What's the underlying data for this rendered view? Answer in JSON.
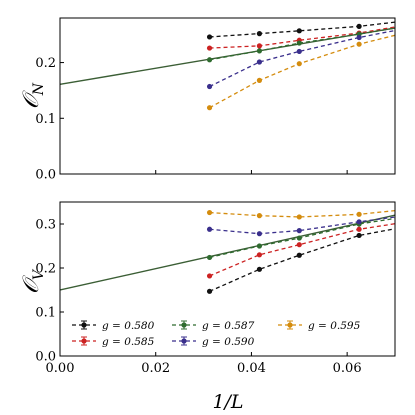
{
  "chart_data": [
    {
      "type": "line",
      "title": "",
      "xlabel": "1/L",
      "ylabel": "𝒪N",
      "ylabel_main": "𝒪",
      "ylabel_sub": "N",
      "xlim": [
        0.0,
        0.07
      ],
      "ylim": [
        0.0,
        0.28
      ],
      "xticks": [
        0.0,
        0.02,
        0.04,
        0.06
      ],
      "xtick_labels": [
        "",
        "",
        "",
        ""
      ],
      "yticks": [
        0.0,
        0.1,
        0.2
      ],
      "ytick_labels": [
        "0.0",
        "0.1",
        "0.2"
      ],
      "grid": false,
      "fit_line": {
        "color": "#3b5e35",
        "x": [
          0.0,
          0.07
        ],
        "y": [
          0.161,
          0.262
        ]
      },
      "series": [
        {
          "name": "g = 0.580",
          "color": "#111111",
          "x": [
            0.03125,
            0.04167,
            0.05,
            0.0625,
            0.07143
          ],
          "y": [
            0.246,
            0.252,
            0.257,
            0.265,
            0.274
          ]
        },
        {
          "name": "g = 0.585",
          "color": "#cc2222",
          "x": [
            0.03125,
            0.04167,
            0.05,
            0.0625,
            0.07143
          ],
          "y": [
            0.226,
            0.23,
            0.24,
            0.253,
            0.266
          ]
        },
        {
          "name": "g = 0.587",
          "color": "#2f6b2f",
          "x": [
            0.03125,
            0.04167,
            0.05,
            0.0625,
            0.07143
          ],
          "y": [
            0.205,
            0.221,
            0.235,
            0.251,
            0.264
          ]
        },
        {
          "name": "g = 0.590",
          "color": "#3a2f8c",
          "x": [
            0.03125,
            0.04167,
            0.05,
            0.0625,
            0.07143
          ],
          "y": [
            0.157,
            0.201,
            0.22,
            0.245,
            0.26
          ]
        },
        {
          "name": "g = 0.595",
          "color": "#d48c0e",
          "x": [
            0.03125,
            0.04167,
            0.05,
            0.0625,
            0.07143
          ],
          "y": [
            0.119,
            0.168,
            0.198,
            0.233,
            0.252
          ]
        }
      ]
    },
    {
      "type": "line",
      "title": "",
      "xlabel": "1/L",
      "ylabel": "𝒪V",
      "ylabel_main": "𝒪",
      "ylabel_sub": "V",
      "xlim": [
        0.0,
        0.07
      ],
      "ylim": [
        0.0,
        0.35
      ],
      "xticks": [
        0.0,
        0.02,
        0.04,
        0.06
      ],
      "xtick_labels": [
        "0.00",
        "0.02",
        "0.04",
        "0.06"
      ],
      "yticks": [
        0.0,
        0.1,
        0.2,
        0.3
      ],
      "ytick_labels": [
        "0.0",
        "0.1",
        "0.2",
        "0.3"
      ],
      "grid": false,
      "legend": "lower-center",
      "fit_line": {
        "color": "#3b5e35",
        "x": [
          0.0,
          0.07
        ],
        "y": [
          0.15,
          0.32
        ]
      },
      "series": [
        {
          "name": "g = 0.580",
          "color": "#111111",
          "x": [
            0.03125,
            0.04167,
            0.05,
            0.0625,
            0.07143
          ],
          "y": [
            0.147,
            0.197,
            0.229,
            0.274,
            0.292
          ]
        },
        {
          "name": "g = 0.585",
          "color": "#cc2222",
          "x": [
            0.03125,
            0.04167,
            0.05,
            0.0625,
            0.07143
          ],
          "y": [
            0.182,
            0.23,
            0.253,
            0.288,
            0.303
          ]
        },
        {
          "name": "g = 0.587",
          "color": "#2f6b2f",
          "x": [
            0.03125,
            0.04167,
            0.05,
            0.0625,
            0.07143
          ],
          "y": [
            0.224,
            0.25,
            0.268,
            0.3,
            0.315
          ]
        },
        {
          "name": "g = 0.590",
          "color": "#3a2f8c",
          "x": [
            0.03125,
            0.04167,
            0.05,
            0.0625,
            0.07143
          ],
          "y": [
            0.288,
            0.278,
            0.285,
            0.305,
            0.318
          ]
        },
        {
          "name": "g = 0.595",
          "color": "#d48c0e",
          "x": [
            0.03125,
            0.04167,
            0.05,
            0.0625,
            0.07143
          ],
          "y": [
            0.326,
            0.319,
            0.316,
            0.322,
            0.332
          ]
        }
      ]
    }
  ]
}
